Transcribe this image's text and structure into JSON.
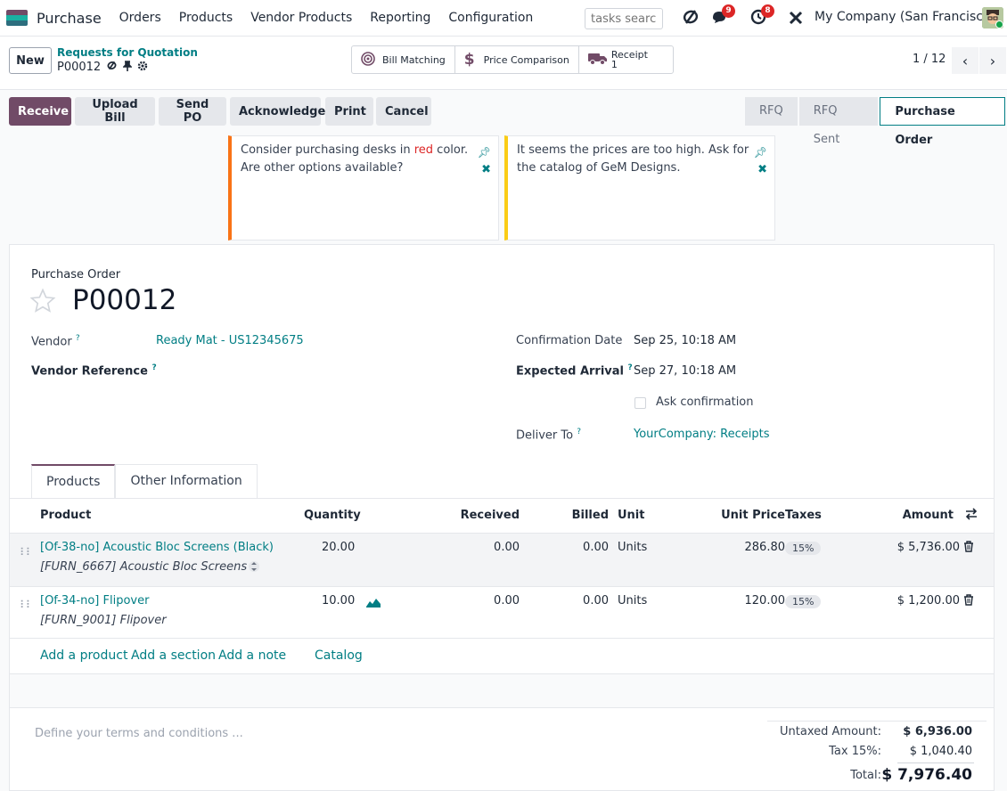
{
  "navbar": {
    "app_name": "Purchase",
    "menu": [
      "Orders",
      "Products",
      "Vendor Products",
      "Reporting",
      "Configuration"
    ],
    "search_placeholder": "tasks search",
    "messages_count": "9",
    "activities_count": "8",
    "company": "My Company (San Francisco)"
  },
  "control": {
    "new_label": "New",
    "breadcrumb_parent": "Requests for Quotation",
    "breadcrumb_current": "P00012",
    "smart_buttons": {
      "bill_matching": "Bill Matching",
      "price_comparison": "Price Comparison",
      "receipt_label": "Receipt",
      "receipt_count": "1"
    },
    "pager": "1 / 12"
  },
  "actions": {
    "receive": "Receive",
    "upload_bill": "Upload Bill",
    "send_po": "Send PO",
    "acknowledge": "Acknowledge",
    "print": "Print",
    "cancel": "Cancel"
  },
  "status_stages": [
    "RFQ",
    "RFQ Sent",
    "Purchase Order"
  ],
  "notes": [
    {
      "before": "Consider purchasing desks in ",
      "highlight": "red",
      "after": " color. Are other options available?",
      "color": "#f97316"
    },
    {
      "text": "It seems the prices are too high. Ask for the catalog of GeM Designs.",
      "color": "#facc15"
    }
  ],
  "form": {
    "subtitle": "Purchase Order",
    "name": "P00012",
    "vendor_label": "Vendor",
    "vendor": "Ready Mat - US12345675",
    "vendor_ref_label": "Vendor Reference",
    "confirmation_label": "Confirmation Date",
    "confirmation_value": "Sep 25, 10:18 AM",
    "expected_label": "Expected Arrival",
    "expected_value": "Sep 27, 10:18 AM",
    "ask_confirmation": "Ask confirmation",
    "deliver_label": "Deliver To",
    "deliver_value": "YourCompany: Receipts"
  },
  "tabs": [
    "Products",
    "Other Information"
  ],
  "table": {
    "headers": {
      "product": "Product",
      "quantity": "Quantity",
      "received": "Received",
      "billed": "Billed",
      "unit": "Unit",
      "unit_price": "Unit Price",
      "taxes": "Taxes",
      "amount": "Amount"
    },
    "rows": [
      {
        "name": "[Of-38-no] Acoustic Bloc Screens (Black)",
        "desc": "[FURN_6667] Acoustic Bloc Screens",
        "quantity": "20.00",
        "received": "0.00",
        "billed": "0.00",
        "unit": "Units",
        "unit_price": "286.80",
        "tax": "15%",
        "amount": "$ 5,736.00"
      },
      {
        "name": "[Of-34-no] Flipover",
        "desc": "[FURN_9001] Flipover",
        "quantity": "10.00",
        "received": "0.00",
        "billed": "0.00",
        "unit": "Units",
        "unit_price": "120.00",
        "tax": "15%",
        "amount": "$ 1,200.00"
      }
    ],
    "add_product": "Add a product",
    "add_section": "Add a section",
    "add_note": "Add a note",
    "catalog": "Catalog"
  },
  "terms_placeholder": "Define your terms and conditions ...",
  "totals": {
    "untaxed_label": "Untaxed Amount:",
    "untaxed": "$ 6,936.00",
    "tax_label": "Tax 15%:",
    "tax": "$ 1,040.40",
    "total_label": "Total:",
    "total": "$ 7,976.40"
  },
  "colors": {
    "primary": "#714b67",
    "link": "#017e84",
    "badge": "#dc2626"
  }
}
